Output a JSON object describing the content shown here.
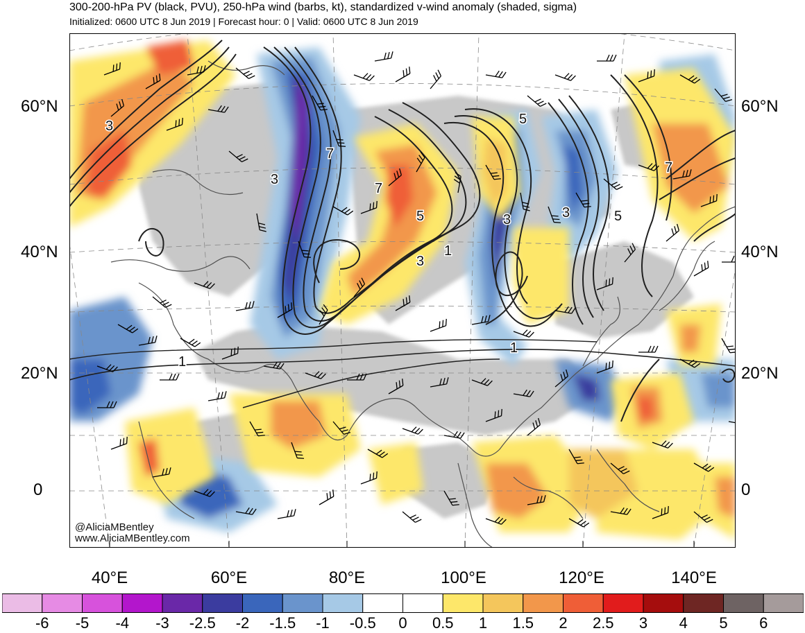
{
  "header": {
    "title": "300-200-hPa PV (black, PVU), 250-hPa wind (barbs, kt), standardized v-wind anomaly (shaded, sigma)",
    "subtitle": "Initialized: 0600 UTC 8 Jun 2019 | Forecast hour: 0 | Valid: 0600 UTC 8 Jun 2019"
  },
  "axes": {
    "lat_labels": [
      "60°N",
      "40°N",
      "20°N",
      "0"
    ],
    "lon_labels": [
      "40°E",
      "60°E",
      "80°E",
      "100°E",
      "120°E",
      "140°E"
    ]
  },
  "contour_labels": [
    "3",
    "3",
    "7",
    "7",
    "5",
    "3",
    "1",
    "5",
    "3",
    "3",
    "5",
    "7",
    "1",
    "1"
  ],
  "credits": {
    "handle": "@AliciaMBentley",
    "site": "www.AliciaMBentley.com"
  },
  "colorbar": {
    "labels": [
      "-6",
      "-5",
      "-4",
      "-3",
      "-2.5",
      "-2",
      "-1.5",
      "-1",
      "-0.5",
      "0",
      "0.5",
      "1",
      "1.5",
      "2",
      "2.5",
      "3",
      "4",
      "5",
      "6"
    ],
    "colors": [
      "#ebbce6",
      "#e68be4",
      "#d752dc",
      "#b316cc",
      "#6a28a8",
      "#3b3c9f",
      "#3a66bb",
      "#6a94cc",
      "#a6c9e6",
      "#ffffff",
      "#ffffff",
      "#fde76a",
      "#f4c65c",
      "#f2974b",
      "#ef5e37",
      "#e11c1c",
      "#a50d0d",
      "#6e2623",
      "#6e6363",
      "#a59b9b"
    ]
  },
  "palette": {
    "land_neutral": "#c8c8c8",
    "coast": "#505050",
    "pv_contour": "#202020"
  }
}
